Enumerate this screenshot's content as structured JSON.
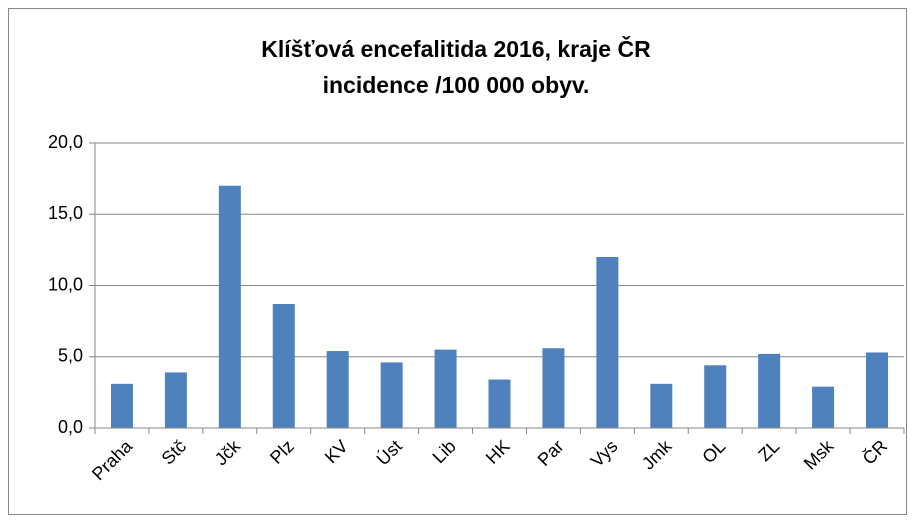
{
  "chart_data": {
    "type": "bar",
    "title": [
      "Klíšťová encefalitida 2016, kraje  ČR",
      "incidence /100 000 obyv."
    ],
    "categories": [
      "Praha",
      "Stč",
      "Jčk",
      "Plz",
      "KV",
      "Úst",
      "Lib",
      "HK",
      "Par",
      "Vys",
      "Jmk",
      "OL",
      "ZL",
      "Msk",
      "ČR"
    ],
    "values": [
      3.1,
      3.9,
      17.0,
      8.7,
      5.4,
      4.6,
      5.5,
      3.4,
      5.6,
      12.0,
      3.1,
      4.4,
      5.2,
      2.9,
      5.3
    ],
    "color": "#4f81bd",
    "ylim": [
      0,
      20
    ],
    "yticks": [
      {
        "value": 0,
        "label": "0,0"
      },
      {
        "value": 5,
        "label": "5,0"
      },
      {
        "value": 10,
        "label": "10,0"
      },
      {
        "value": 15,
        "label": "15,0"
      },
      {
        "value": 20,
        "label": "20,0"
      }
    ],
    "grid": true
  }
}
